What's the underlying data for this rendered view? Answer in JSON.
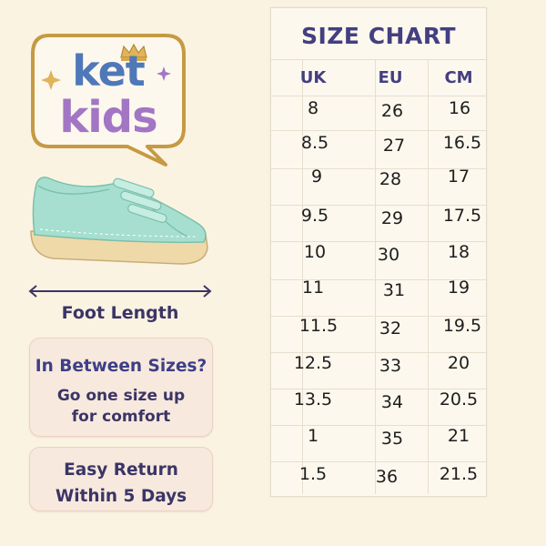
{
  "logo": {
    "line1": "ket",
    "line2": "kids"
  },
  "foot_label": "Foot Length",
  "tip": {
    "line1": "In Between Sizes?",
    "line2a": "Go one size up",
    "line2b": "for comfort"
  },
  "returns": {
    "line1": "Easy Return",
    "line2": "Within 5 Days"
  },
  "size_chart": {
    "title": "SIZE CHART",
    "headers": [
      "UK",
      "EU",
      "CM"
    ],
    "rows": [
      [
        "8",
        "26",
        "16"
      ],
      [
        "8.5",
        "27",
        "16.5"
      ],
      [
        "9",
        "28",
        "17"
      ],
      [
        "9.5",
        "29",
        "17.5"
      ],
      [
        "10",
        "30",
        "18"
      ],
      [
        "11",
        "31",
        "19"
      ],
      [
        "11.5",
        "32",
        "19.5"
      ],
      [
        "12.5",
        "33",
        "20"
      ],
      [
        "13.5",
        "34",
        "20.5"
      ],
      [
        "1",
        "35",
        "21"
      ],
      [
        "1.5",
        "36",
        "21.5"
      ]
    ]
  },
  "colors": {
    "background": "#fbf3e2",
    "title": "#433f80",
    "shoe": "#a6dfcf",
    "sole": "#efd9a9",
    "logo_ket": "#4f78b8",
    "logo_kids": "#a276c4"
  }
}
